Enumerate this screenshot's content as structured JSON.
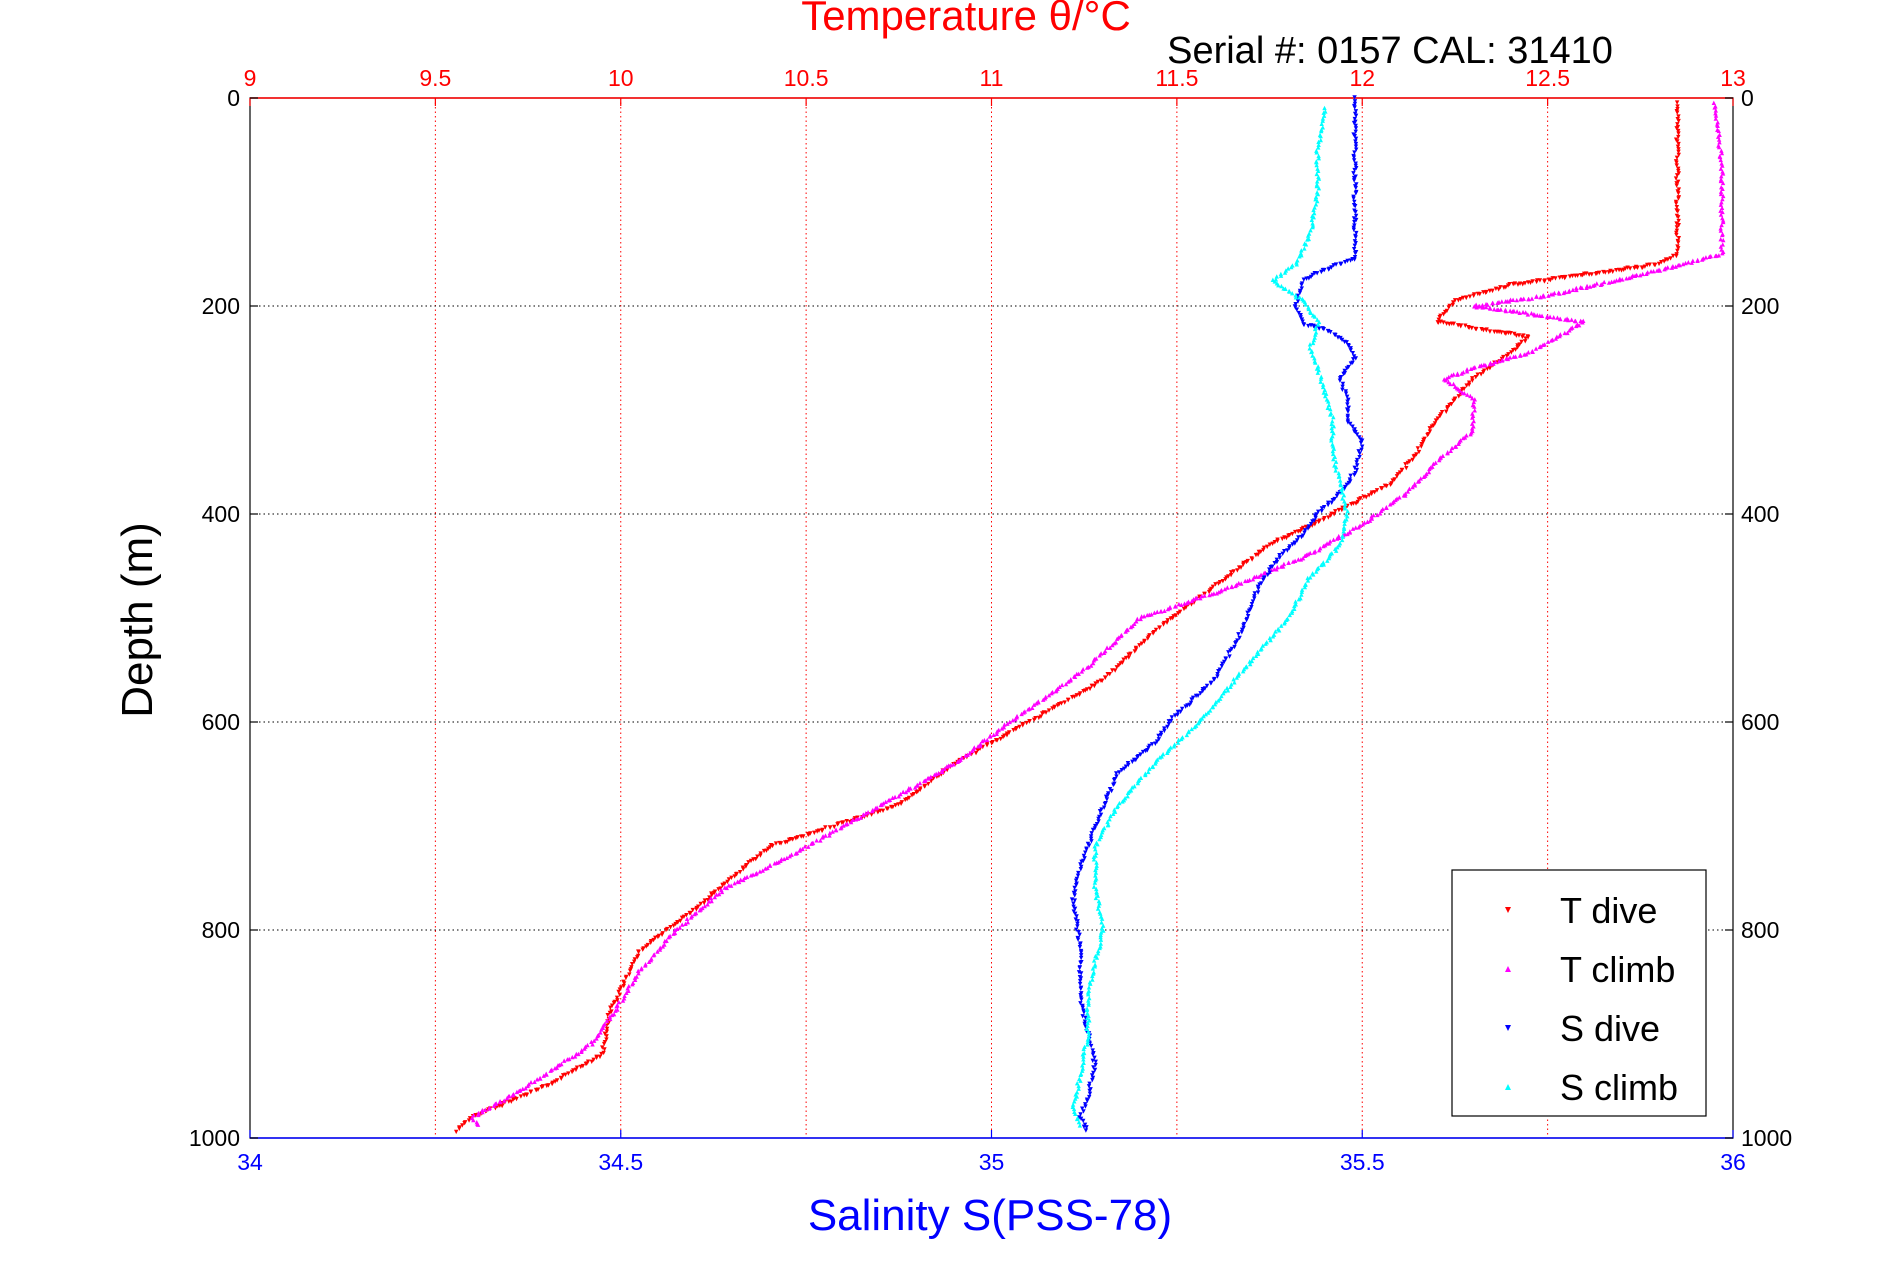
{
  "chart_data": {
    "type": "scatter",
    "title": "Temperature θ/°C",
    "annotation": "Serial #: 0157  CAL: 31410",
    "xlabel": "Salinity S(PSS-78)",
    "ylabel": "Depth (m)",
    "x_bottom": {
      "label": "Salinity S(PSS-78)",
      "lim": [
        34,
        36
      ],
      "ticks": [
        "34",
        "34.5",
        "35",
        "35.5",
        "36"
      ],
      "color": "#0000ff"
    },
    "x_top": {
      "label": "Temperature θ/°C",
      "lim": [
        9,
        13
      ],
      "ticks": [
        "9",
        "9.5",
        "10",
        "10.5",
        "11",
        "11.5",
        "12",
        "12.5",
        "13"
      ],
      "color": "#ff0000"
    },
    "y": {
      "lim": [
        0,
        1000
      ],
      "reversed": true,
      "ticks": [
        "0",
        "200",
        "400",
        "600",
        "800",
        "1000"
      ]
    },
    "grid": true,
    "legend_position": "bottom-right",
    "series": [
      {
        "name": "T dive",
        "axis": "top",
        "color": "#ff0000",
        "marker": "down-triangle",
        "points": [
          [
            12.85,
            5
          ],
          [
            12.85,
            60
          ],
          [
            12.85,
            120
          ],
          [
            12.85,
            150
          ],
          [
            12.8,
            160
          ],
          [
            12.6,
            170
          ],
          [
            12.4,
            180
          ],
          [
            12.25,
            195
          ],
          [
            12.2,
            215
          ],
          [
            12.45,
            230
          ],
          [
            12.4,
            245
          ],
          [
            12.3,
            270
          ],
          [
            12.25,
            290
          ],
          [
            12.2,
            310
          ],
          [
            12.15,
            340
          ],
          [
            12.08,
            370
          ],
          [
            11.95,
            395
          ],
          [
            11.75,
            430
          ],
          [
            11.6,
            470
          ],
          [
            11.45,
            510
          ],
          [
            11.3,
            560
          ],
          [
            11.1,
            600
          ],
          [
            10.9,
            640
          ],
          [
            10.75,
            680
          ],
          [
            10.4,
            720
          ],
          [
            10.3,
            750
          ],
          [
            10.2,
            780
          ],
          [
            10.05,
            820
          ],
          [
            9.97,
            880
          ],
          [
            9.95,
            920
          ],
          [
            9.8,
            950
          ],
          [
            9.6,
            980
          ],
          [
            9.55,
            995
          ]
        ]
      },
      {
        "name": "T climb",
        "axis": "top",
        "color": "#ff00ff",
        "marker": "up-triangle",
        "points": [
          [
            12.95,
            5
          ],
          [
            12.97,
            60
          ],
          [
            12.97,
            120
          ],
          [
            12.97,
            150
          ],
          [
            12.75,
            170
          ],
          [
            12.5,
            190
          ],
          [
            12.3,
            200
          ],
          [
            12.6,
            215
          ],
          [
            12.55,
            225
          ],
          [
            12.45,
            245
          ],
          [
            12.3,
            260
          ],
          [
            12.22,
            270
          ],
          [
            12.3,
            290
          ],
          [
            12.3,
            320
          ],
          [
            12.2,
            350
          ],
          [
            12.12,
            380
          ],
          [
            12.0,
            410
          ],
          [
            11.85,
            440
          ],
          [
            11.65,
            470
          ],
          [
            11.4,
            500
          ],
          [
            11.25,
            550
          ],
          [
            11.05,
            600
          ],
          [
            10.9,
            640
          ],
          [
            10.65,
            690
          ],
          [
            10.45,
            730
          ],
          [
            10.28,
            760
          ],
          [
            10.15,
            800
          ],
          [
            10.05,
            840
          ],
          [
            9.98,
            880
          ],
          [
            9.92,
            910
          ],
          [
            9.75,
            950
          ],
          [
            9.6,
            980
          ],
          [
            9.62,
            990
          ]
        ]
      },
      {
        "name": "S dive",
        "axis": "bottom",
        "color": "#0000ff",
        "marker": "down-triangle",
        "points": [
          [
            35.49,
            0
          ],
          [
            35.49,
            40
          ],
          [
            35.49,
            80
          ],
          [
            35.49,
            120
          ],
          [
            35.49,
            155
          ],
          [
            35.45,
            165
          ],
          [
            35.42,
            175
          ],
          [
            35.41,
            200
          ],
          [
            35.42,
            218
          ],
          [
            35.45,
            222
          ],
          [
            35.48,
            235
          ],
          [
            35.49,
            250
          ],
          [
            35.47,
            270
          ],
          [
            35.48,
            290
          ],
          [
            35.48,
            310
          ],
          [
            35.5,
            330
          ],
          [
            35.49,
            360
          ],
          [
            35.47,
            380
          ],
          [
            35.44,
            400
          ],
          [
            35.42,
            420
          ],
          [
            35.39,
            440
          ],
          [
            35.36,
            470
          ],
          [
            35.34,
            510
          ],
          [
            35.3,
            560
          ],
          [
            35.24,
            600
          ],
          [
            35.22,
            620
          ],
          [
            35.17,
            650
          ],
          [
            35.14,
            700
          ],
          [
            35.12,
            740
          ],
          [
            35.11,
            770
          ],
          [
            35.12,
            820
          ],
          [
            35.12,
            870
          ],
          [
            35.13,
            900
          ],
          [
            35.14,
            930
          ],
          [
            35.13,
            960
          ],
          [
            35.12,
            980
          ],
          [
            35.13,
            995
          ]
        ]
      },
      {
        "name": "S climb",
        "axis": "bottom",
        "color": "#00ffff",
        "marker": "up-triangle",
        "points": [
          [
            35.45,
            10
          ],
          [
            35.44,
            50
          ],
          [
            35.44,
            90
          ],
          [
            35.43,
            130
          ],
          [
            35.41,
            160
          ],
          [
            35.38,
            175
          ],
          [
            35.42,
            195
          ],
          [
            35.44,
            215
          ],
          [
            35.43,
            240
          ],
          [
            35.44,
            260
          ],
          [
            35.45,
            285
          ],
          [
            35.46,
            310
          ],
          [
            35.46,
            340
          ],
          [
            35.47,
            370
          ],
          [
            35.48,
            400
          ],
          [
            35.47,
            430
          ],
          [
            35.43,
            460
          ],
          [
            35.4,
            500
          ],
          [
            35.34,
            550
          ],
          [
            35.28,
            600
          ],
          [
            35.22,
            640
          ],
          [
            35.17,
            680
          ],
          [
            35.14,
            720
          ],
          [
            35.14,
            760
          ],
          [
            35.15,
            800
          ],
          [
            35.14,
            830
          ],
          [
            35.13,
            860
          ],
          [
            35.13,
            900
          ],
          [
            35.12,
            940
          ],
          [
            35.11,
            970
          ],
          [
            35.12,
            990
          ]
        ]
      }
    ]
  }
}
